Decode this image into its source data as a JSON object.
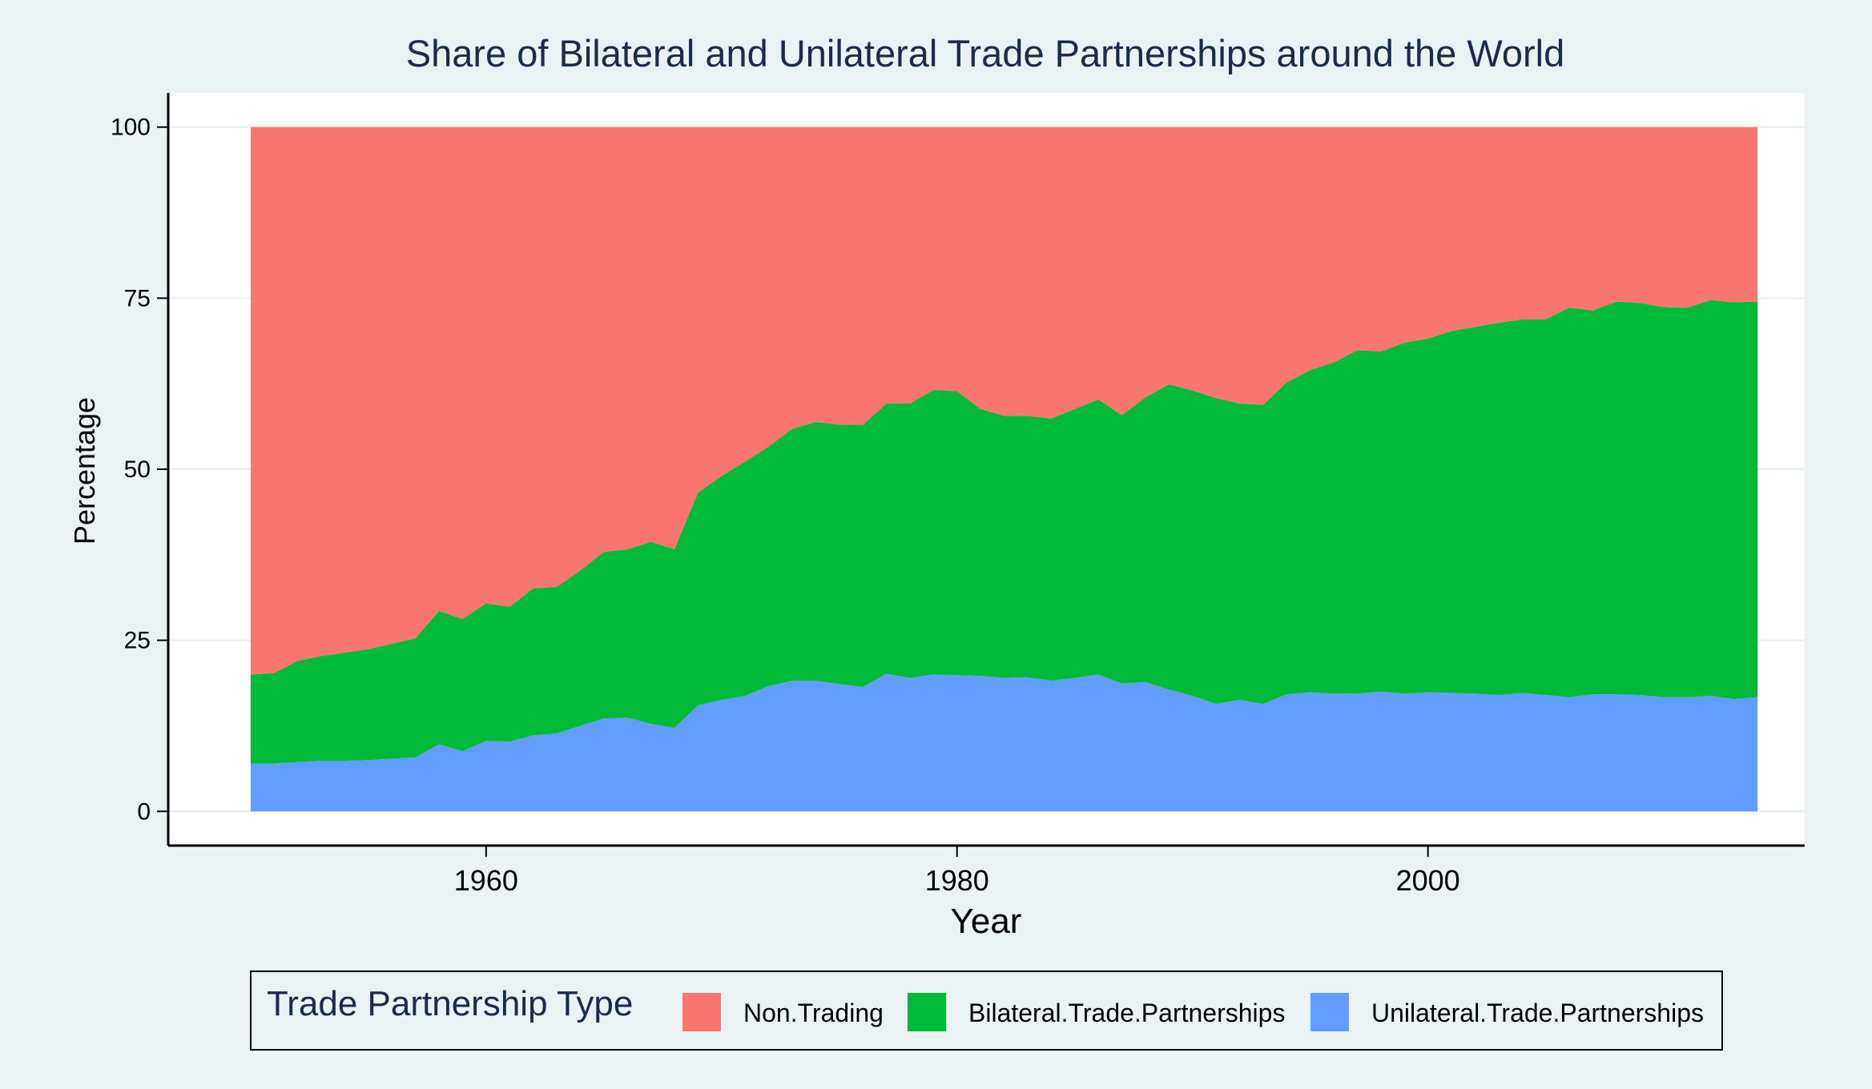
{
  "chart_data": {
    "type": "area",
    "stacked": true,
    "title": "Share of Bilateral and Unilateral Trade Partnerships around the World",
    "xlabel": "Year",
    "ylabel": "Percentage",
    "xlim": [
      1946.5,
      2016
    ],
    "ylim": [
      -5,
      105
    ],
    "x_ticks": [
      1960,
      1980,
      2000
    ],
    "y_ticks": [
      0,
      25,
      50,
      75,
      100
    ],
    "grid": "horizontal",
    "legend": {
      "title": "Trade Partnership Type",
      "position": "bottom"
    },
    "x": [
      1950,
      1951,
      1952,
      1953,
      1954,
      1955,
      1956,
      1957,
      1958,
      1959,
      1960,
      1961,
      1962,
      1963,
      1964,
      1965,
      1966,
      1967,
      1968,
      1969,
      1970,
      1971,
      1972,
      1973,
      1974,
      1975,
      1976,
      1977,
      1978,
      1979,
      1980,
      1981,
      1982,
      1983,
      1984,
      1985,
      1986,
      1987,
      1988,
      1989,
      1990,
      1991,
      1992,
      1993,
      1994,
      1995,
      1996,
      1997,
      1998,
      1999,
      2000,
      2001,
      2002,
      2003,
      2004,
      2005,
      2006,
      2007,
      2008,
      2009,
      2010,
      2011,
      2012,
      2013,
      2014
    ],
    "series": [
      {
        "name": "Unilateral.Trade.Partnerships",
        "color": "#619cff",
        "values": [
          7,
          7,
          7.2,
          7.4,
          7.4,
          7.5,
          7.7,
          7.9,
          9.8,
          8.8,
          10.3,
          10.2,
          11.1,
          11.4,
          12.5,
          13.6,
          13.7,
          12.8,
          12.2,
          15.5,
          16.3,
          16.9,
          18.3,
          19.1,
          19.1,
          18.6,
          18.2,
          20.1,
          19.5,
          20.0,
          19.9,
          19.8,
          19.5,
          19.6,
          19.1,
          19.5,
          20.0,
          18.7,
          18.9,
          17.8,
          16.9,
          15.7,
          16.3,
          15.7,
          17.1,
          17.4,
          17.2,
          17.2,
          17.5,
          17.2,
          17.4,
          17.3,
          17.2,
          17.0,
          17.3,
          17.0,
          16.7,
          17.1,
          17.1,
          17.0,
          16.7,
          16.7,
          16.9,
          16.4,
          16.7
        ]
      },
      {
        "name": "Bilateral.Trade.Partnerships",
        "color": "#00ba38",
        "values": [
          13,
          13.2,
          14.8,
          15.3,
          15.8,
          16.2,
          16.8,
          17.4,
          19.5,
          19.3,
          20.1,
          19.7,
          21.5,
          21.4,
          22.7,
          24.3,
          24.6,
          26.6,
          26.1,
          31.1,
          32.7,
          34.2,
          35.0,
          36.8,
          37.8,
          37.9,
          38.3,
          39.5,
          40.1,
          41.6,
          41.5,
          39.0,
          38.3,
          38.2,
          38.3,
          39.3,
          40.2,
          39.2,
          41.6,
          44.6,
          44.6,
          44.7,
          43.3,
          43.7,
          45.6,
          47.1,
          48.4,
          50.2,
          49.7,
          51.3,
          51.7,
          52.9,
          53.6,
          54.4,
          54.6,
          54.9,
          56.9,
          56.1,
          57.4,
          57.3,
          57.0,
          56.9,
          57.8,
          58.0,
          57.8
        ]
      },
      {
        "name": "Non.Trading",
        "color": "#f8766d",
        "values": [
          80,
          79.8,
          78,
          77.3,
          76.8,
          76.3,
          75.5,
          74.7,
          70.7,
          71.9,
          69.6,
          70.1,
          67.4,
          67.2,
          64.8,
          62.1,
          61.7,
          60.6,
          61.7,
          53.4,
          51,
          48.9,
          46.7,
          44.1,
          43.1,
          43.5,
          43.5,
          40.4,
          40.4,
          38.4,
          38.6,
          41.2,
          42.2,
          42.2,
          42.6,
          41.2,
          39.8,
          42.1,
          39.5,
          37.6,
          38.5,
          39.6,
          40.4,
          40.6,
          37.3,
          35.5,
          34.4,
          32.6,
          32.8,
          31.5,
          30.9,
          29.8,
          29.2,
          28.6,
          28.1,
          28.1,
          26.4,
          26.8,
          25.5,
          25.7,
          26.3,
          26.4,
          25.3,
          25.6,
          25.5
        ]
      }
    ],
    "legend_items": [
      {
        "label": "Non.Trading",
        "color": "#f8766d"
      },
      {
        "label": "Bilateral.Trade.Partnerships",
        "color": "#00ba38"
      },
      {
        "label": "Unilateral.Trade.Partnerships",
        "color": "#619cff"
      }
    ]
  }
}
